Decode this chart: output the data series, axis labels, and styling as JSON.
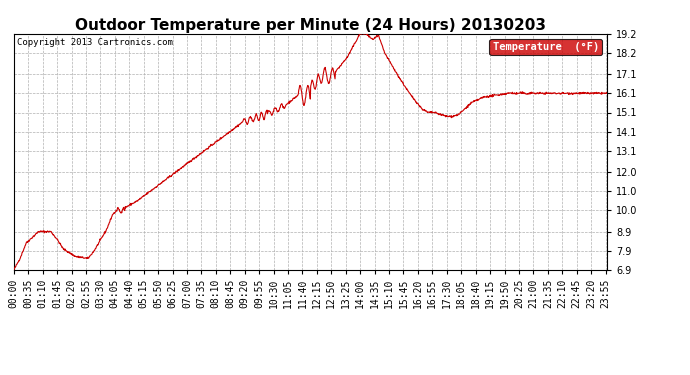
{
  "title": "Outdoor Temperature per Minute (24 Hours) 20130203",
  "copyright": "Copyright 2013 Cartronics.com",
  "legend_label": "Temperature  (°F)",
  "legend_bg": "#cc0000",
  "legend_text_color": "#ffffff",
  "line_color": "#cc0000",
  "bg_color": "#ffffff",
  "plot_bg_color": "#ffffff",
  "grid_color": "#b0b0b0",
  "ylim": [
    6.9,
    19.2
  ],
  "yticks": [
    6.9,
    7.9,
    8.9,
    10.0,
    11.0,
    12.0,
    13.1,
    14.1,
    15.1,
    16.1,
    17.1,
    18.2,
    19.2
  ],
  "title_fontsize": 11,
  "tick_fontsize": 7,
  "x_tick_interval": 35,
  "num_points": 1440
}
